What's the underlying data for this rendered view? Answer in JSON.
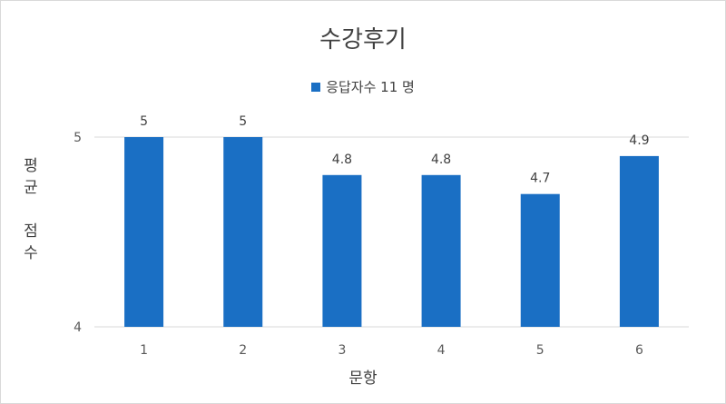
{
  "chart_data": {
    "type": "bar",
    "title": "수강후기",
    "legend": "응답자수 11 명",
    "series": [
      {
        "name": "응답자수 11 명",
        "values": [
          5,
          5,
          4.8,
          4.8,
          4.7,
          4.9
        ]
      }
    ],
    "categories": [
      "1",
      "2",
      "3",
      "4",
      "5",
      "6"
    ],
    "data_labels": [
      "5",
      "5",
      "4.8",
      "4.8",
      "4.7",
      "4.9"
    ],
    "xlabel": "문항",
    "ylabel": [
      "평",
      "균",
      "점",
      "수"
    ],
    "ylim": [
      4,
      5
    ],
    "yticks": [
      4,
      5
    ],
    "grid": true,
    "legend_position": "top",
    "color": "#1a6fc4"
  }
}
